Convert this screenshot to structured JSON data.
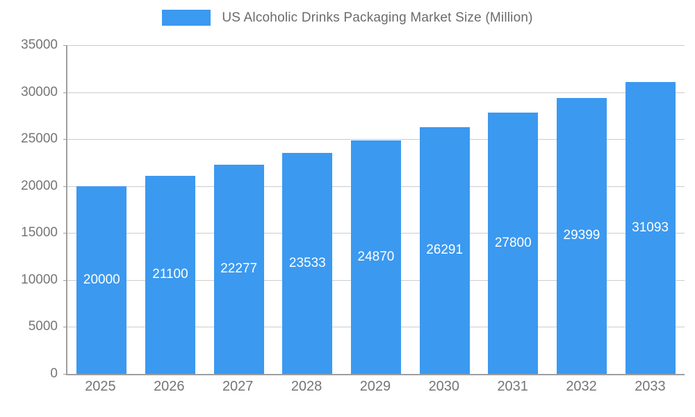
{
  "chart_data": {
    "type": "bar",
    "title": "US Alcoholic Drinks Packaging Market Size (Million)",
    "categories": [
      "2025",
      "2026",
      "2027",
      "2028",
      "2029",
      "2030",
      "2031",
      "2032",
      "2033"
    ],
    "values": [
      20000,
      21100,
      22277,
      23533,
      24870,
      26291,
      27800,
      29399,
      31093
    ],
    "xlabel": "",
    "ylabel": "",
    "ylim": [
      0,
      35000
    ],
    "ytick_step": 5000,
    "yticks": [
      0,
      5000,
      10000,
      15000,
      20000,
      25000,
      30000,
      35000
    ],
    "grid": "horizontal",
    "legend_position": "top",
    "bar_color": "#3b99f0",
    "value_label_color": "#ffffff",
    "value_label_position": "center-inside"
  }
}
